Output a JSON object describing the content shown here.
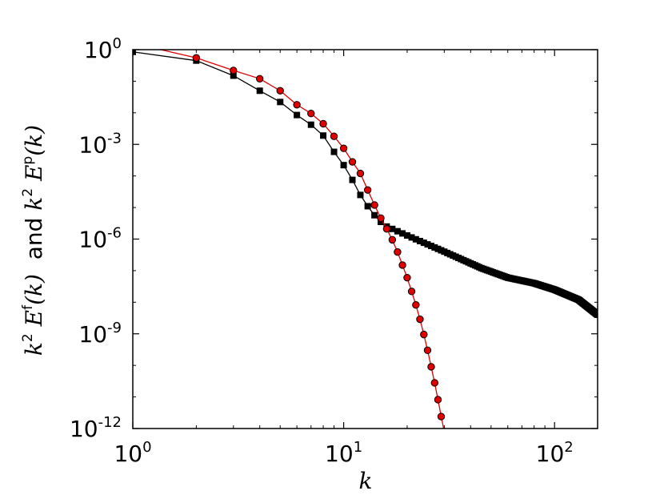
{
  "chart_data": {
    "type": "line",
    "xscale": "log",
    "yscale": "log",
    "xlim": [
      1,
      160
    ],
    "ylim": [
      1e-12,
      1
    ],
    "grid": false,
    "legend": "none",
    "xlabel": "k",
    "ylabel": {
      "part1": "k",
      "part1_sup": "2",
      "part2": " E",
      "part2_sup": "f",
      "part3": "(k)",
      "and": "  and ",
      "part4": "k",
      "part4_sup": "2",
      "part5": " E",
      "part5_sup": "p",
      "part6": "(k)"
    },
    "x_ticks": [
      {
        "value": 1,
        "base": "10",
        "exp": "0"
      },
      {
        "value": 10,
        "base": "10",
        "exp": "1"
      },
      {
        "value": 100,
        "base": "10",
        "exp": "2"
      }
    ],
    "y_ticks": [
      {
        "value": 1,
        "base": "10",
        "exp": "0"
      },
      {
        "value": 0.001,
        "base": "10",
        "exp": "-3"
      },
      {
        "value": 1e-06,
        "base": "10",
        "exp": "-6"
      },
      {
        "value": 1e-09,
        "base": "10",
        "exp": "-9"
      },
      {
        "value": 1e-12,
        "base": "10",
        "exp": "-12"
      }
    ],
    "series": [
      {
        "color": "#000000",
        "marker": "square",
        "points": [
          [
            1,
            0.85
          ],
          [
            2,
            0.45
          ],
          [
            3,
            0.15
          ],
          [
            4,
            0.05
          ],
          [
            5,
            0.022
          ],
          [
            6,
            0.0085
          ],
          [
            7,
            0.0042
          ],
          [
            8,
            0.0019
          ],
          [
            9,
            0.00058
          ],
          [
            10,
            0.00022
          ],
          [
            11,
            7.5e-05
          ],
          [
            12,
            2.5e-05
          ],
          [
            13,
            1.1e-05
          ],
          [
            14,
            5.7e-06
          ],
          [
            15,
            3.5e-06
          ],
          [
            16,
            2.5e-06
          ],
          [
            17,
            2.1e-06
          ]
        ],
        "tail": {
          "from": 17,
          "to": 160,
          "anchors": [
            [
              17,
              2.1e-06
            ],
            [
              20,
              1.3e-06
            ],
            [
              30,
              4e-07
            ],
            [
              45,
              1.2e-07
            ],
            [
              60,
              6e-08
            ],
            [
              80,
              4e-08
            ],
            [
              100,
              2.5e-08
            ],
            [
              130,
              1.2e-08
            ],
            [
              160,
              4e-09
            ]
          ]
        }
      },
      {
        "color": "#e00000",
        "marker": "circle",
        "points": [
          [
            1,
            1.6
          ],
          [
            2,
            0.55
          ],
          [
            3,
            0.22
          ],
          [
            4,
            0.12
          ],
          [
            5,
            0.05
          ],
          [
            6,
            0.018
          ],
          [
            7,
            0.0095
          ],
          [
            8,
            0.0045
          ],
          [
            9,
            0.0018
          ],
          [
            10,
            0.00075
          ],
          [
            11,
            0.00028
          ],
          [
            12,
            0.00012
          ],
          [
            13,
            3.6e-05
          ],
          [
            14,
            1.2e-05
          ],
          [
            15,
            4.6e-06
          ],
          [
            16,
            2.1e-06
          ],
          [
            17,
            9.5e-07
          ],
          [
            18,
            3.9e-07
          ],
          [
            19,
            1.5e-07
          ],
          [
            20,
            6e-08
          ],
          [
            21,
            2.2e-08
          ],
          [
            22,
            8.2e-09
          ],
          [
            23,
            2.9e-09
          ],
          [
            24,
            9.5e-10
          ],
          [
            25,
            3e-10
          ],
          [
            26,
            9e-11
          ],
          [
            27,
            2.8e-11
          ],
          [
            28,
            8.2e-12
          ],
          [
            29,
            2.4e-12
          ],
          [
            30,
            8e-13
          ]
        ]
      }
    ]
  }
}
